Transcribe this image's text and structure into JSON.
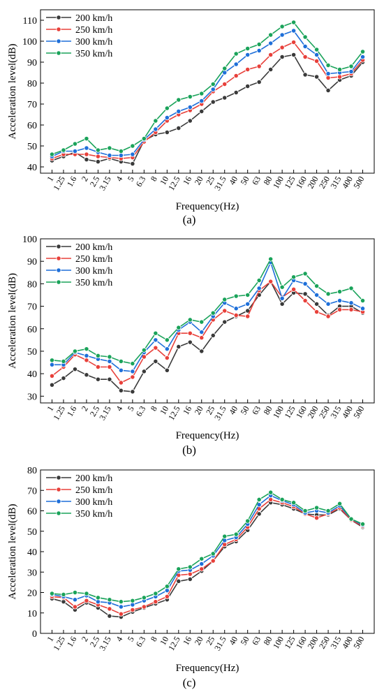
{
  "colors": {
    "s200": "#3a3a3a",
    "s250": "#e8403a",
    "s300": "#1e6fd9",
    "s350": "#1aa35a"
  },
  "chart_data": [
    {
      "type": "line",
      "panel_label": "(a)",
      "xlabel": "Frequency(Hz)",
      "ylabel": "Acceleration level(dB)",
      "ylim": [
        37,
        115
      ],
      "yticks": [
        40,
        50,
        60,
        70,
        80,
        90,
        100,
        110
      ],
      "legend_position": "top-left",
      "categories": [
        "1",
        "1.25",
        "1.6",
        "2",
        "2.5",
        "3.15",
        "4",
        "5",
        "6.3",
        "8",
        "10",
        "12.5",
        "16",
        "20",
        "25",
        "31.5",
        "40",
        "50",
        "63",
        "80",
        "100",
        "125",
        "160",
        "200",
        "250",
        "315",
        "400",
        "500"
      ],
      "series": [
        {
          "name": "200 km/h",
          "values": [
            43,
            45,
            47,
            43.5,
            42.5,
            44,
            42.5,
            41.5,
            52.5,
            55.5,
            56.5,
            58.5,
            62,
            66.5,
            71,
            73,
            75.5,
            78.5,
            80.5,
            86.5,
            92.5,
            93.5,
            84,
            83,
            76.5,
            81.5,
            83.5,
            90
          ]
        },
        {
          "name": "250 km/h",
          "values": [
            44,
            46,
            46,
            46,
            45,
            44.5,
            44,
            44.5,
            52,
            56.5,
            62,
            65,
            67,
            70,
            76,
            79.5,
            83.5,
            86.5,
            88,
            93.5,
            97,
            99.5,
            92.5,
            90.5,
            82.5,
            83,
            84.5,
            91
          ]
        },
        {
          "name": "300 km/h",
          "values": [
            45,
            47.5,
            47.5,
            49,
            47,
            45.5,
            45.5,
            46,
            53,
            58,
            63.5,
            66.5,
            68.5,
            71.5,
            77,
            85,
            89,
            93.5,
            95.5,
            99,
            103,
            105,
            97.5,
            93.5,
            84.5,
            85,
            85.5,
            92.5
          ]
        },
        {
          "name": "350 km/h",
          "values": [
            46,
            48,
            51,
            53.5,
            48,
            49,
            47.5,
            50,
            53.5,
            62,
            68,
            72,
            73.5,
            75,
            79.5,
            87,
            94,
            96.5,
            98.5,
            103,
            107,
            109,
            102,
            96,
            88.5,
            86.5,
            88,
            95
          ]
        }
      ]
    },
    {
      "type": "line",
      "panel_label": "(b)",
      "xlabel": "Frequency(Hz)",
      "ylabel": "Acceleration level(dB)",
      "ylim": [
        27,
        100
      ],
      "yticks": [
        30,
        40,
        50,
        60,
        70,
        80,
        90,
        100
      ],
      "legend_position": "top-left",
      "categories": [
        "1",
        "1.25",
        "1.6",
        "2",
        "2.5",
        "3.15",
        "4",
        "5",
        "6.3",
        "8",
        "10",
        "12.5",
        "16",
        "20",
        "25",
        "31.5",
        "40",
        "50",
        "63",
        "80",
        "100",
        "125",
        "160",
        "200",
        "250",
        "315",
        "400",
        "500"
      ],
      "series": [
        {
          "name": "200 km/h",
          "values": [
            35,
            38,
            42,
            39.5,
            37.5,
            37.5,
            32.5,
            32,
            41,
            45.5,
            41.5,
            52,
            54,
            50,
            57,
            63,
            65.5,
            68,
            75,
            81,
            71,
            76,
            75.5,
            71,
            66,
            70,
            70,
            67
          ]
        },
        {
          "name": "250 km/h",
          "values": [
            39,
            43,
            48.5,
            46,
            43,
            43,
            36,
            38.5,
            47.5,
            51.5,
            47,
            58,
            58,
            56,
            64,
            68,
            66,
            65.5,
            77,
            81,
            74,
            77.5,
            72.5,
            67.5,
            65.5,
            68.5,
            68.5,
            67.5
          ]
        },
        {
          "name": "300 km/h",
          "values": [
            44,
            44,
            49.5,
            48,
            46.5,
            45.5,
            41.5,
            41,
            49.5,
            55,
            51,
            59.5,
            63,
            58.5,
            65.5,
            71.5,
            69,
            71,
            78,
            89.5,
            73.5,
            81.5,
            80,
            75,
            71,
            72.5,
            71.5,
            69
          ]
        },
        {
          "name": "350 km/h",
          "values": [
            46,
            45.5,
            50,
            51,
            48,
            47.5,
            45.5,
            44.5,
            50.5,
            58,
            55,
            60.5,
            64,
            63,
            67,
            73,
            74.5,
            75,
            81.5,
            91,
            78.5,
            83,
            84.5,
            79,
            75.5,
            76.5,
            78,
            72.5
          ]
        }
      ]
    },
    {
      "type": "line",
      "panel_label": "(c)",
      "xlabel": "Frequency(Hz)",
      "ylabel": "Acceleration level(dB)",
      "ylim": [
        0,
        80
      ],
      "yticks": [
        0,
        10,
        20,
        30,
        40,
        50,
        60,
        70,
        80
      ],
      "legend_position": "top-left",
      "categories": [
        "1",
        "1.25",
        "1.6",
        "2",
        "2.5",
        "3.15",
        "4",
        "5",
        "6.3",
        "8",
        "10",
        "12.5",
        "16",
        "20",
        "25",
        "31.5",
        "40",
        "50",
        "63",
        "80",
        "100",
        "125",
        "160",
        "200",
        "250",
        "315",
        "400",
        "500"
      ],
      "series": [
        {
          "name": "200 km/h",
          "values": [
            17,
            15.5,
            11.5,
            15,
            12.5,
            8.5,
            8,
            10.5,
            12.5,
            14.5,
            16.5,
            25.5,
            26.5,
            30.5,
            35.5,
            42.5,
            45,
            50.5,
            58.5,
            64,
            63,
            61,
            58.5,
            58,
            58,
            61,
            55.5,
            52
          ]
        },
        {
          "name": "250 km/h",
          "values": [
            18,
            17.5,
            13,
            16,
            14,
            12,
            9.5,
            11.5,
            13,
            15.5,
            18,
            28.5,
            29,
            31.5,
            35.5,
            43.5,
            46,
            52,
            61,
            65.5,
            64,
            62,
            58.5,
            56.5,
            58.5,
            61.5,
            55.5,
            52.5
          ]
        },
        {
          "name": "300 km/h",
          "values": [
            19,
            18,
            16.5,
            18.5,
            15.5,
            15,
            13,
            14,
            16,
            18,
            21,
            30.5,
            31,
            34,
            38,
            45.5,
            47,
            53.5,
            63,
            67.5,
            65,
            63,
            59,
            60,
            59,
            62.5,
            56,
            53
          ]
        },
        {
          "name": "350 km/h",
          "values": [
            19.5,
            19,
            20,
            19.5,
            17.5,
            16.5,
            15.5,
            16,
            17.5,
            19.5,
            23,
            31.5,
            32.5,
            36.5,
            39,
            47.5,
            48.5,
            55,
            65.5,
            69,
            65.5,
            64,
            60,
            61.5,
            60,
            63.5,
            56,
            53.5
          ]
        }
      ]
    }
  ]
}
